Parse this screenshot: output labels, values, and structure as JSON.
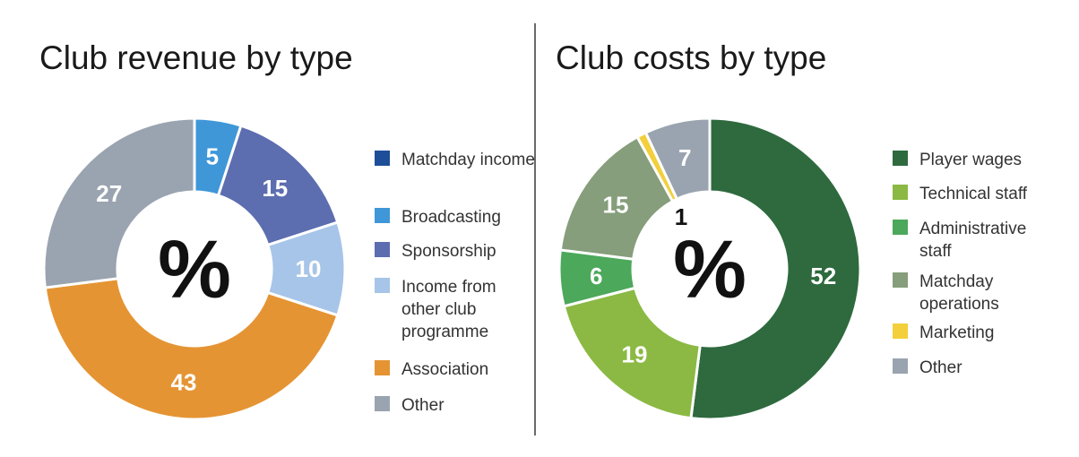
{
  "chart_data": [
    {
      "type": "pie",
      "title": "Club revenue by type",
      "center_label": "%",
      "slices": [
        {
          "label": "Matchday income",
          "value": 0,
          "color": "#1f4e99",
          "display": ""
        },
        {
          "label": "Broadcasting",
          "value": 5,
          "color": "#3f97d8",
          "display": "5"
        },
        {
          "label": "Sponsorship",
          "value": 15,
          "color": "#5c6db0",
          "display": "15"
        },
        {
          "label": "Income from other club programme",
          "value": 10,
          "color": "#a7c5e8",
          "display": "10"
        },
        {
          "label": "Association",
          "value": 43,
          "color": "#e59433",
          "display": "43"
        },
        {
          "label": "Other",
          "value": 27,
          "color": "#9aa4b0",
          "display": "27"
        }
      ]
    },
    {
      "type": "pie",
      "title": "Club costs by type",
      "center_label": "%",
      "slices": [
        {
          "label": "Player wages",
          "value": 52,
          "color": "#2e6a3e",
          "display": "52"
        },
        {
          "label": "Technical staff",
          "value": 19,
          "color": "#8bb943",
          "display": "19"
        },
        {
          "label": "Administrative staff",
          "value": 6,
          "color": "#4ca85a",
          "display": "6"
        },
        {
          "label": "Matchday operations",
          "value": 15,
          "color": "#869e7b",
          "display": "15"
        },
        {
          "label": "Marketing",
          "value": 1,
          "color": "#f2cf3b",
          "display": "1"
        },
        {
          "label": "Other",
          "value": 7,
          "color": "#9aa4b0",
          "display": "7"
        }
      ]
    }
  ]
}
